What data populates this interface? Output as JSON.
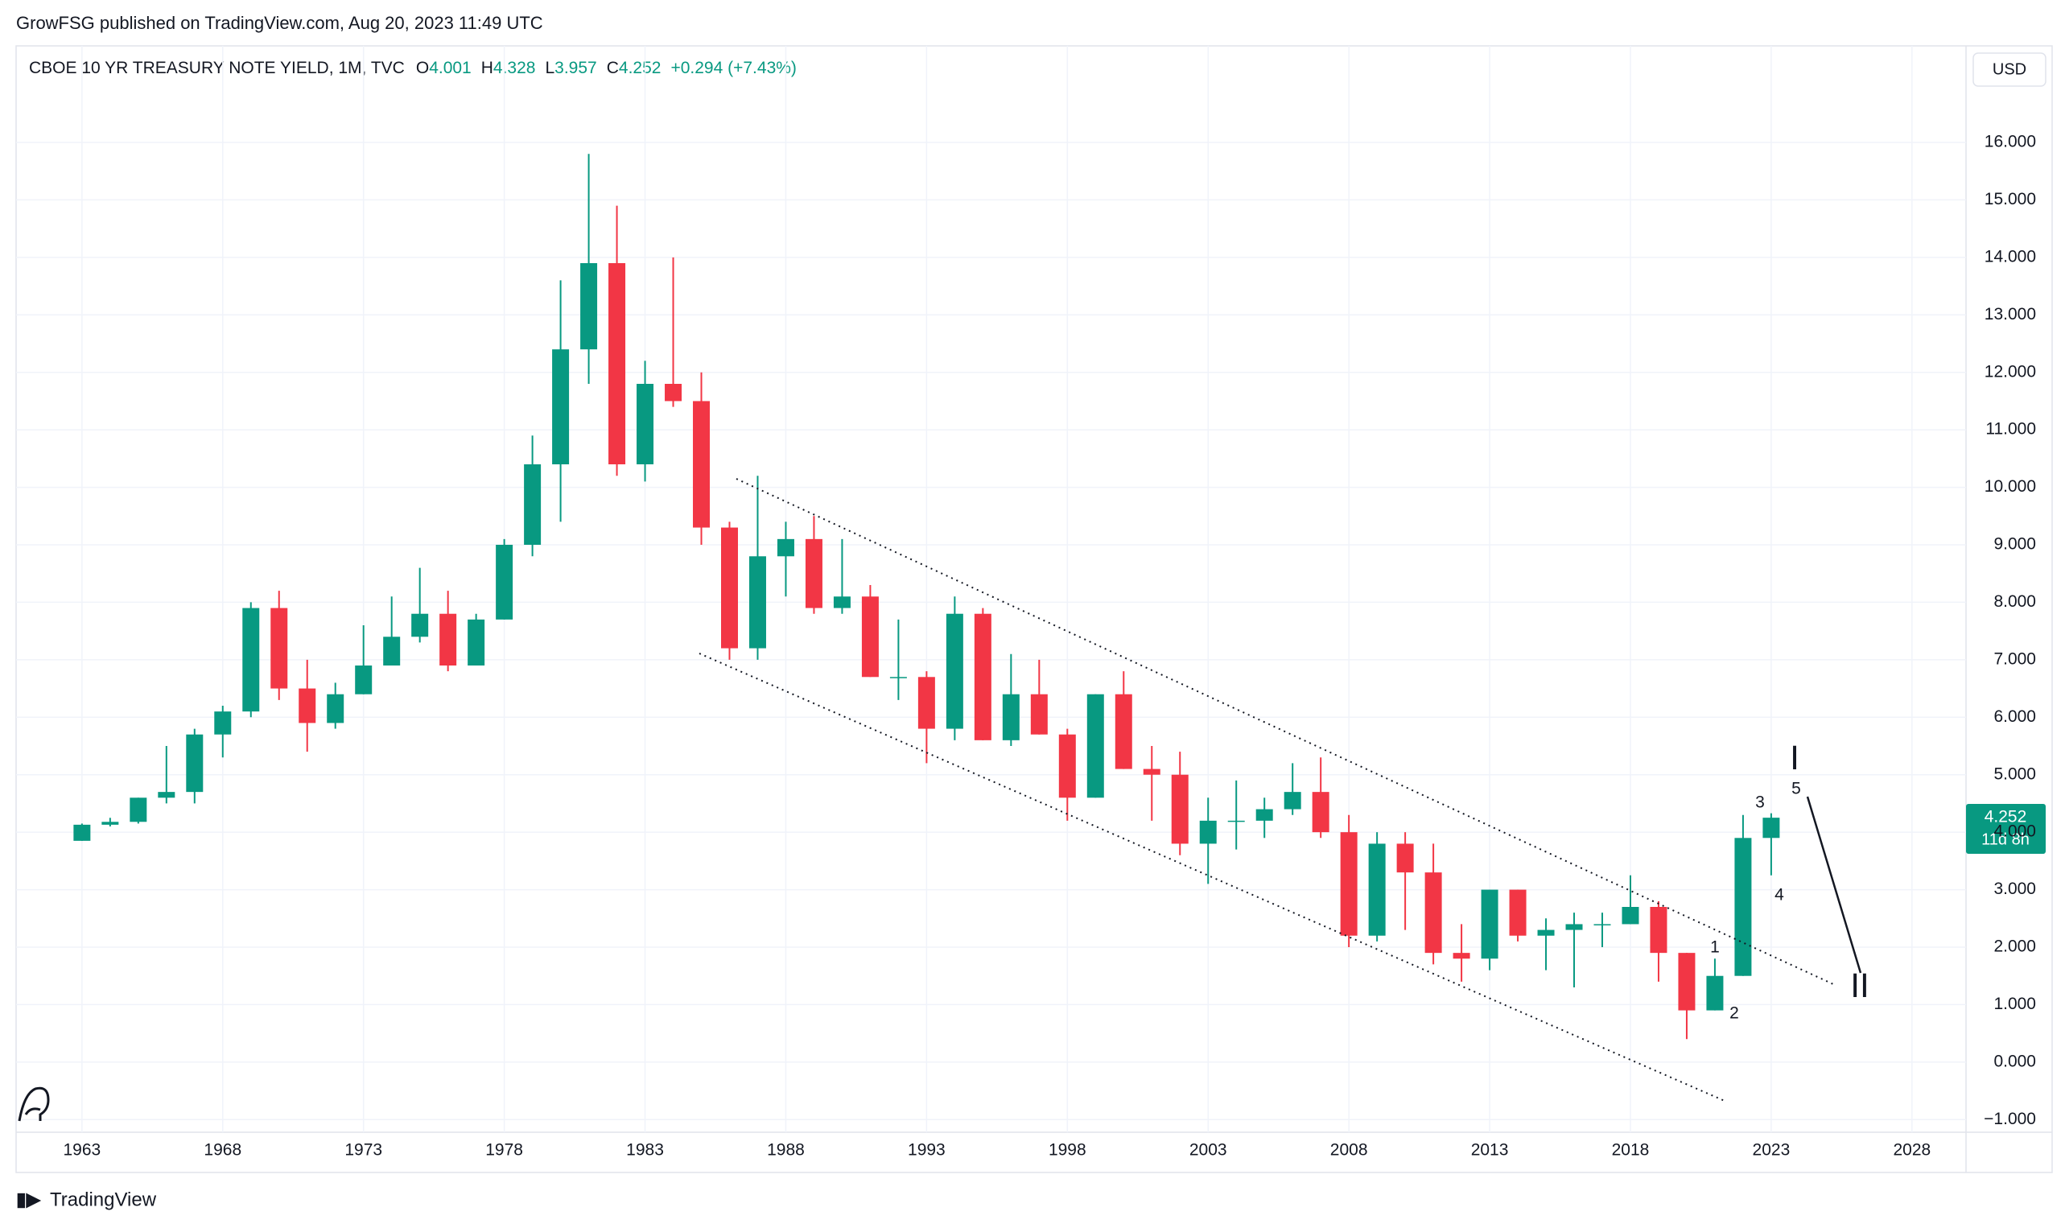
{
  "header": {
    "publisher": "GrowFSG published on TradingView.com, Aug 20, 2023 11:49 UTC",
    "symbol": "CBOE 10 YR TREASURY NOTE YIELD, 1M, TVC",
    "open_label": "O",
    "open": "4.001",
    "high_label": "H",
    "high": "4.328",
    "low_label": "L",
    "low": "3.957",
    "close_label": "C",
    "close": "4.252",
    "change": "+0.294 (+7.43%)",
    "currency": "USD"
  },
  "chart_data": {
    "type": "candlestick",
    "up_color": "#089981",
    "down_color": "#f23645",
    "grid": true,
    "xlim": [
      1960.66,
      2029.92
    ],
    "xticks": [
      1963,
      1968,
      1973,
      1978,
      1983,
      1988,
      1993,
      1998,
      2003,
      2008,
      2013,
      2018,
      2023,
      2028
    ],
    "ylim": [
      -1.22,
      17.68
    ],
    "yticks": [
      {
        "value": -1,
        "label": "−1.000"
      },
      {
        "value": 0,
        "label": "0.000"
      },
      {
        "value": 1,
        "label": "1.000"
      },
      {
        "value": 2,
        "label": "2.000"
      },
      {
        "value": 3,
        "label": "3.000"
      },
      {
        "value": 4,
        "label": "4.000"
      },
      {
        "value": 5,
        "label": "5.000"
      },
      {
        "value": 6,
        "label": "6.000"
      },
      {
        "value": 7,
        "label": "7.000"
      },
      {
        "value": 8,
        "label": "8.000"
      },
      {
        "value": 9,
        "label": "9.000"
      },
      {
        "value": 10,
        "label": "10.000"
      },
      {
        "value": 11,
        "label": "11.000"
      },
      {
        "value": 12,
        "label": "12.000"
      },
      {
        "value": 13,
        "label": "13.000"
      },
      {
        "value": 14,
        "label": "14.000"
      },
      {
        "value": 15,
        "label": "15.000"
      },
      {
        "value": 16,
        "label": "16.000"
      }
    ],
    "x": [
      1963,
      1964,
      1965,
      1966,
      1967,
      1968,
      1969,
      1970,
      1971,
      1972,
      1973,
      1974,
      1975,
      1976,
      1977,
      1978,
      1979,
      1980,
      1981,
      1982,
      1983,
      1984,
      1985,
      1986,
      1987,
      1988,
      1989,
      1990,
      1991,
      1992,
      1993,
      1994,
      1995,
      1996,
      1997,
      1998,
      1999,
      2000,
      2001,
      2002,
      2003,
      2004,
      2005,
      2006,
      2007,
      2008,
      2009,
      2010,
      2011,
      2012,
      2013,
      2014,
      2015,
      2016,
      2017,
      2018,
      2019,
      2020,
      2021,
      2022,
      2023
    ],
    "open": [
      3.85,
      4.13,
      4.18,
      4.6,
      4.7,
      5.7,
      6.1,
      7.9,
      6.5,
      5.9,
      6.4,
      6.9,
      7.4,
      7.8,
      6.9,
      7.7,
      9.0,
      10.4,
      12.4,
      13.9,
      10.4,
      11.8,
      11.5,
      9.3,
      7.2,
      8.8,
      9.1,
      7.9,
      8.1,
      6.7,
      6.7,
      5.8,
      7.8,
      5.6,
      6.4,
      5.7,
      4.6,
      6.4,
      5.1,
      5.0,
      3.8,
      4.2,
      4.2,
      4.4,
      4.7,
      4.0,
      2.2,
      3.8,
      3.3,
      1.9,
      1.8,
      3.0,
      2.2,
      2.3,
      2.4,
      2.4,
      2.7,
      1.9,
      0.9,
      1.5,
      3.9
    ],
    "high": [
      4.15,
      4.25,
      4.6,
      5.5,
      5.8,
      6.2,
      8.0,
      8.2,
      7.0,
      6.6,
      7.6,
      8.1,
      8.6,
      8.2,
      7.8,
      9.1,
      10.9,
      13.6,
      15.8,
      14.9,
      12.2,
      14.0,
      12.0,
      9.4,
      10.2,
      9.4,
      9.5,
      9.1,
      8.3,
      7.7,
      6.8,
      8.1,
      7.9,
      7.1,
      7.0,
      5.8,
      6.4,
      6.8,
      5.5,
      5.4,
      4.6,
      4.9,
      4.6,
      5.2,
      5.3,
      4.3,
      4.0,
      4.0,
      3.8,
      2.4,
      3.0,
      3.0,
      2.5,
      2.6,
      2.6,
      3.25,
      2.8,
      1.9,
      1.8,
      4.3,
      4.33
    ],
    "low": [
      3.85,
      4.1,
      4.15,
      4.5,
      4.5,
      5.3,
      6.0,
      6.3,
      5.4,
      5.8,
      6.4,
      6.9,
      7.3,
      6.8,
      6.9,
      7.7,
      8.8,
      9.4,
      11.8,
      10.2,
      10.1,
      11.4,
      9.0,
      7.0,
      7.0,
      8.1,
      7.8,
      7.8,
      6.7,
      6.3,
      5.2,
      5.6,
      5.6,
      5.5,
      5.7,
      4.2,
      4.6,
      5.1,
      4.2,
      3.6,
      3.1,
      3.7,
      3.9,
      4.3,
      3.9,
      2.0,
      2.1,
      2.3,
      1.7,
      1.4,
      1.6,
      2.1,
      1.6,
      1.3,
      2.0,
      2.4,
      1.4,
      0.4,
      0.9,
      1.5,
      3.25
    ],
    "close": [
      4.13,
      4.18,
      4.6,
      4.7,
      5.7,
      6.1,
      7.9,
      6.5,
      5.9,
      6.4,
      6.9,
      7.4,
      7.8,
      6.9,
      7.7,
      9.0,
      10.4,
      12.4,
      13.9,
      10.4,
      11.8,
      11.5,
      9.3,
      7.2,
      8.8,
      9.1,
      7.9,
      8.1,
      6.7,
      6.7,
      5.8,
      7.8,
      5.6,
      6.4,
      5.7,
      4.6,
      6.4,
      5.1,
      5.0,
      3.8,
      4.2,
      4.2,
      4.4,
      4.7,
      4.0,
      2.2,
      3.8,
      3.3,
      1.9,
      1.8,
      3.0,
      2.2,
      2.3,
      2.4,
      2.4,
      2.7,
      1.9,
      0.9,
      1.5,
      3.9,
      4.252
    ],
    "last_price": "4.252",
    "countdown": "11d 8h",
    "waves": [
      "1",
      "2",
      "3",
      "4",
      "5",
      "I",
      "II"
    ]
  },
  "footer": {
    "brand": "TradingView"
  }
}
